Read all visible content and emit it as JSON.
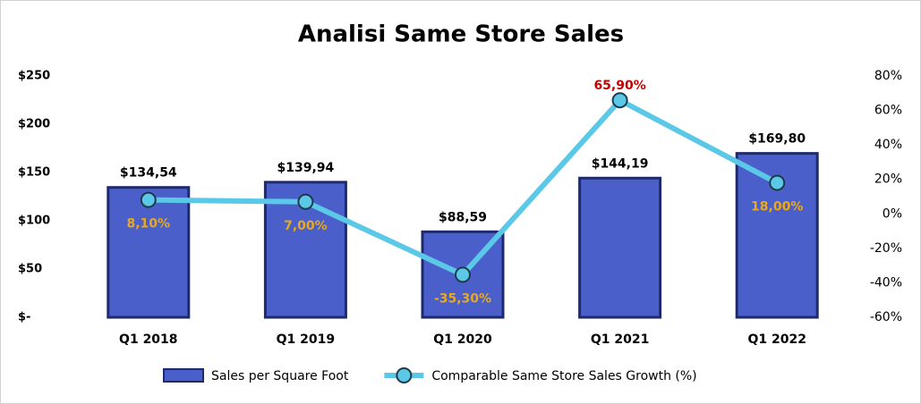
{
  "chart_data": {
    "type": "bar-line",
    "title": "Analisi Same Store Sales",
    "categories": [
      "Q1 2018",
      "Q1 2019",
      "Q1 2020",
      "Q1 2021",
      "Q1 2022"
    ],
    "series": [
      {
        "name": "Sales per Square Foot",
        "type": "bar",
        "color": "#4a5fc9",
        "edge_color": "#1e2a6e",
        "values": [
          134.54,
          139.94,
          88.59,
          144.19,
          169.8
        ],
        "value_labels": [
          "$134,54",
          "$139,94",
          "$88,59",
          "$144,19",
          "$169,80"
        ]
      },
      {
        "name": "Comparable Same Store Sales Growth (%)",
        "type": "line",
        "axis": "y2",
        "color": "#5bc8e8",
        "edge_color": "#1e3a4a",
        "values": [
          8.1,
          7.0,
          -35.3,
          65.9,
          18.0
        ],
        "value_labels": [
          "8,10%",
          "7,00%",
          "-35,30%",
          "65,90%",
          "18,00%"
        ],
        "value_label_colors": [
          "#e8a820",
          "#e8a820",
          "#e8a820",
          "#c00000",
          "#e8a820"
        ]
      }
    ],
    "ylim": [
      0,
      250
    ],
    "yticks": [
      {
        "value": 0,
        "label": "$-"
      },
      {
        "value": 50,
        "label": "$50"
      },
      {
        "value": 100,
        "label": "$100"
      },
      {
        "value": 150,
        "label": "$150"
      },
      {
        "value": 200,
        "label": "$200"
      },
      {
        "value": 250,
        "label": "$250"
      }
    ],
    "y2lim": [
      -60,
      80
    ],
    "y2ticks": [
      {
        "value": -60,
        "label": "-60%"
      },
      {
        "value": -40,
        "label": "-40%"
      },
      {
        "value": -20,
        "label": "-20%"
      },
      {
        "value": 0,
        "label": "0%"
      },
      {
        "value": 20,
        "label": "20%"
      },
      {
        "value": 40,
        "label": "40%"
      },
      {
        "value": 60,
        "label": "60%"
      },
      {
        "value": 80,
        "label": "80%"
      }
    ],
    "grid": false,
    "legend": "bottom"
  }
}
